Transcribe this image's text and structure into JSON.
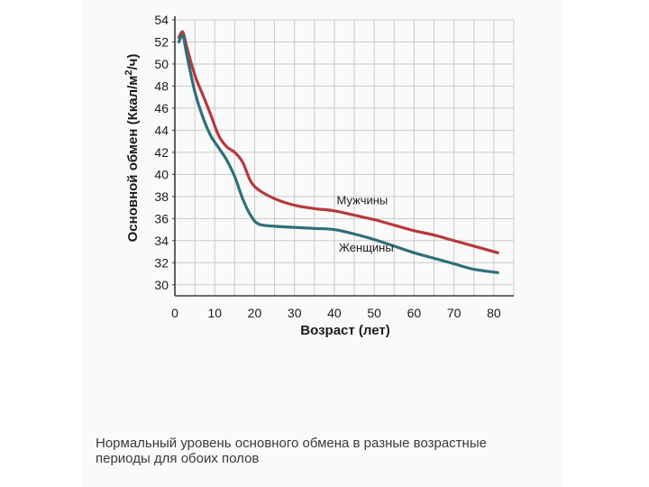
{
  "caption": {
    "line1": "Нормальный уровень основного обмена в разные возрастные",
    "line2": "периоды для обоих полов"
  },
  "chart_data": {
    "type": "line",
    "title": "",
    "xlabel": "Возраст (лет)",
    "ylabel_main": "Основной обмен (Ккал/м",
    "ylabel_sup": "2",
    "ylabel_tail": "/ч)",
    "xlim": [
      0,
      85
    ],
    "ylim": [
      29,
      54
    ],
    "xticks": [
      0,
      10,
      20,
      30,
      40,
      50,
      60,
      70,
      80
    ],
    "yticks": [
      30,
      32,
      34,
      36,
      38,
      40,
      42,
      44,
      46,
      48,
      50,
      52,
      54
    ],
    "grid": true,
    "series": [
      {
        "name": "Мужчины",
        "color": "#b5393c",
        "x": [
          1,
          2,
          3,
          5,
          7,
          9,
          11,
          13,
          15,
          17,
          19,
          21,
          25,
          30,
          35,
          40,
          45,
          50,
          55,
          60,
          65,
          70,
          75,
          81
        ],
        "y": [
          52.4,
          52.9,
          51.5,
          49.0,
          47.2,
          45.4,
          43.5,
          42.5,
          42.0,
          41.1,
          39.4,
          38.6,
          37.8,
          37.2,
          36.9,
          36.7,
          36.3,
          35.9,
          35.4,
          34.9,
          34.5,
          34.0,
          33.5,
          32.9
        ]
      },
      {
        "name": "Женщины",
        "color": "#2e6f78",
        "x": [
          1,
          2,
          3,
          5,
          7,
          9,
          11,
          13,
          15,
          17,
          19,
          21,
          25,
          30,
          35,
          40,
          45,
          50,
          55,
          60,
          65,
          70,
          75,
          81
        ],
        "y": [
          52.0,
          52.6,
          50.8,
          47.5,
          45.2,
          43.5,
          42.4,
          41.3,
          39.8,
          37.8,
          36.3,
          35.5,
          35.3,
          35.2,
          35.1,
          35.0,
          34.6,
          34.1,
          33.5,
          32.9,
          32.4,
          31.9,
          31.4,
          31.1
        ]
      }
    ]
  },
  "colors": {
    "grid": "#c9c9c9",
    "axis": "#3a3a3a"
  }
}
